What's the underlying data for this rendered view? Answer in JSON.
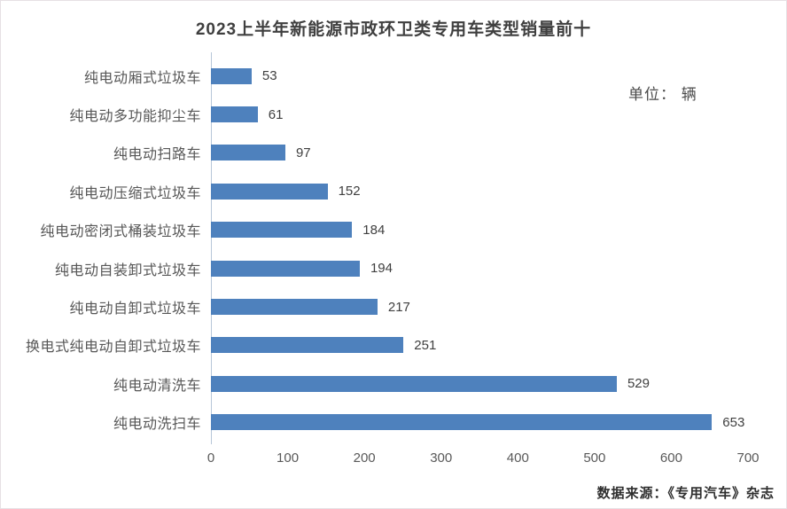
{
  "page": {
    "title": "2023上半年新能源市政环卫类专用车类型销量前十",
    "unit_label": "单位： 辆",
    "source_label": "数据来源：《专用汽车》杂志"
  },
  "colors": {
    "bar": "#4e81bd",
    "title_text": "#3f3f3f",
    "category_text": "#575757",
    "value_text": "#3f3f3f",
    "tick_text": "#595959",
    "axis_line": "#b7c7d9"
  },
  "chart_data": {
    "type": "bar",
    "orientation": "horizontal",
    "title": "2023上半年新能源市政环卫类专用车类型销量前十",
    "unit": "辆",
    "categories": [
      "纯电动厢式垃圾车",
      "纯电动多功能抑尘车",
      "纯电动扫路车",
      "纯电动压缩式垃圾车",
      "纯电动密闭式桶装垃圾车",
      "纯电动自装卸式垃圾车",
      "纯电动自卸式垃圾车",
      "换电式纯电动自卸式垃圾车",
      "纯电动清洗车",
      "纯电动洗扫车"
    ],
    "values": [
      53,
      61,
      97,
      152,
      184,
      194,
      217,
      251,
      529,
      653
    ],
    "xlabel": "",
    "ylabel": "",
    "xlim": [
      0,
      700
    ],
    "xticks": [
      0,
      100,
      200,
      300,
      400,
      500,
      600,
      700
    ],
    "grid": false,
    "legend": "none",
    "value_labels": true,
    "source": "数据来源：《专用汽车》杂志"
  }
}
